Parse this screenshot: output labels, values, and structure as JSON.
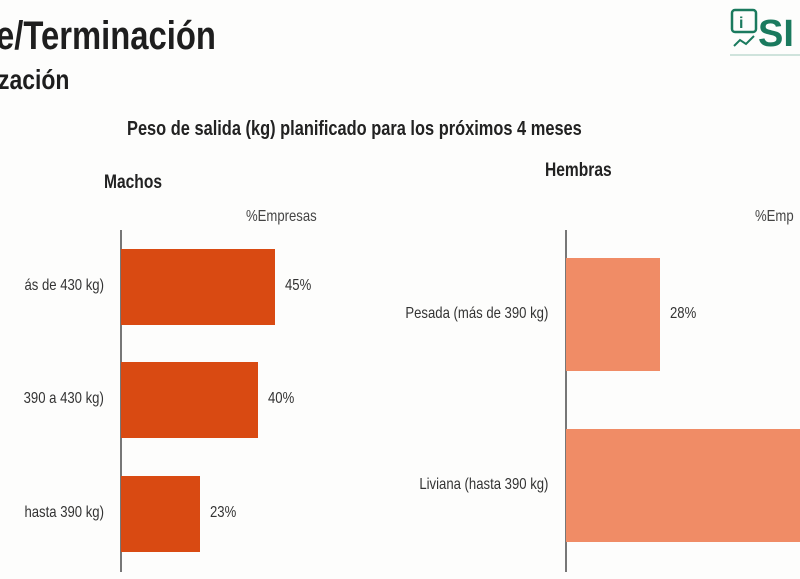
{
  "header": {
    "title": "e/Terminación",
    "subtitle": "zación",
    "logo_text": "SI"
  },
  "chart_data": [
    {
      "type": "bar",
      "orientation": "horizontal",
      "title": "Peso de salida (kg) planificado para los próximos 4 meses",
      "panel_title": "Machos",
      "value_label": "%Empresas",
      "categories": [
        "ás de 430 kg)",
        "390 a 430 kg)",
        "hasta 390 kg)"
      ],
      "values": [
        45,
        40,
        23
      ],
      "data_labels": [
        "45%",
        "40%",
        "23%"
      ],
      "unit": "%",
      "color": "#d94a12"
    },
    {
      "type": "bar",
      "orientation": "horizontal",
      "panel_title": "Hembras",
      "value_label": "%Emp",
      "categories": [
        "Pesada (más de 390 kg)",
        "Liviana (hasta 390 kg)"
      ],
      "values": [
        28,
        72
      ],
      "data_labels": [
        "28%",
        ""
      ],
      "unit": "%",
      "color": "#f08c66"
    }
  ],
  "colors": {
    "logo": "#1a7a5e"
  }
}
